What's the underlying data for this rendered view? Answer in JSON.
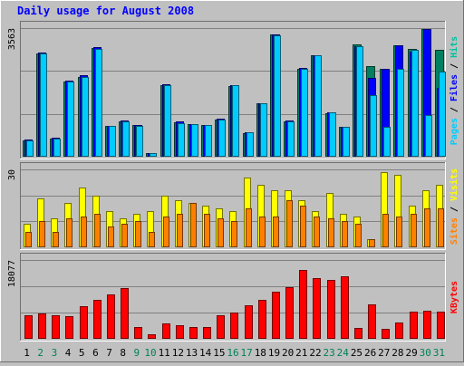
{
  "chart_data": {
    "type": "bar",
    "title": "Daily usage for August 2008",
    "categories": [
      "1",
      "2",
      "3",
      "4",
      "5",
      "6",
      "7",
      "8",
      "9",
      "10",
      "11",
      "12",
      "13",
      "14",
      "15",
      "16",
      "17",
      "18",
      "19",
      "20",
      "21",
      "22",
      "23",
      "24",
      "25",
      "26",
      "27",
      "28",
      "29",
      "30",
      "31"
    ],
    "weekend_days": [
      "2",
      "3",
      "9",
      "10",
      "16",
      "17",
      "23",
      "24",
      "30",
      "31"
    ],
    "panels": [
      {
        "label_parts": [
          "Pages",
          "Files",
          "Hits"
        ],
        "label_colors": [
          "#00ccff",
          "#0000ff",
          "#00c0a0"
        ],
        "max_label": "3563",
        "ylim": [
          0,
          3563
        ],
        "series": [
          {
            "name": "Hits",
            "color": "#008060",
            "values": [
              450,
              2850,
              510,
              2080,
              2220,
              3000,
              850,
              980,
              870,
              95,
              1970,
              960,
              900,
              880,
              1020,
              1950,
              650,
              1470,
              3380,
              980,
              2430,
              2800,
              1200,
              820,
              3100,
              2520,
              2430,
              3080,
              2990,
              3530,
              2950
            ]
          },
          {
            "name": "Files",
            "color": "#0000ff",
            "values": [
              470,
              2880,
              530,
              2110,
              2250,
              3030,
              860,
              1000,
              870,
              100,
              2000,
              970,
              910,
              880,
              1050,
              1990,
              690,
              1490,
              3380,
              1000,
              2470,
              2820,
              1240,
              830,
              3070,
              2190,
              2440,
              3080,
              2900,
              3530,
              1900
            ]
          },
          {
            "name": "Pages",
            "color": "#00ccff",
            "values": [
              440,
              2860,
              500,
              2080,
              2220,
              2990,
              850,
              980,
              860,
              90,
              1980,
              940,
              900,
              880,
              1030,
              1970,
              670,
              1480,
              3370,
              980,
              2440,
              2800,
              1230,
              820,
              3070,
              1700,
              820,
              2440,
              2960,
              1150,
              2370
            ]
          }
        ]
      },
      {
        "label_parts": [
          "Sites",
          "Visits"
        ],
        "label_colors": [
          "#ff8000",
          "#ffff00"
        ],
        "max_label": "30",
        "ylim": [
          0,
          30
        ],
        "series": [
          {
            "name": "Visits",
            "color": "#ffff00",
            "values": [
              9,
              19,
              11,
              17,
              23,
              20,
              14,
              11,
              13,
              14,
              20,
              18,
              17,
              16,
              15,
              14,
              27,
              24,
              22,
              22,
              18,
              14,
              21,
              13,
              12,
              3,
              29,
              28,
              16,
              22,
              24
            ]
          },
          {
            "name": "Sites",
            "color": "#ff8000",
            "values": [
              6,
              10,
              6,
              11,
              12,
              13,
              8,
              9,
              10,
              6,
              12,
              13,
              17,
              13,
              11,
              10,
              15,
              12,
              12,
              18,
              16,
              12,
              11,
              10,
              9,
              3,
              13,
              12,
              13,
              15,
              15
            ]
          }
        ]
      },
      {
        "label_parts": [
          "KBytes"
        ],
        "label_colors": [
          "#ff0000"
        ],
        "max_label": "18077",
        "ylim": [
          0,
          18077
        ],
        "series": [
          {
            "name": "KBytes",
            "color": "#ff0000",
            "values": [
              5300,
              5900,
              5300,
              5100,
              7500,
              9000,
              10200,
              11700,
              2600,
              1100,
              3600,
              3100,
              2600,
              2600,
              5300,
              6000,
              7600,
              9000,
              10800,
              11800,
              15700,
              14000,
              13500,
              14300,
              2500,
              7900,
              2200,
              3800,
              6200,
              6500,
              6300
            ]
          }
        ]
      }
    ]
  }
}
